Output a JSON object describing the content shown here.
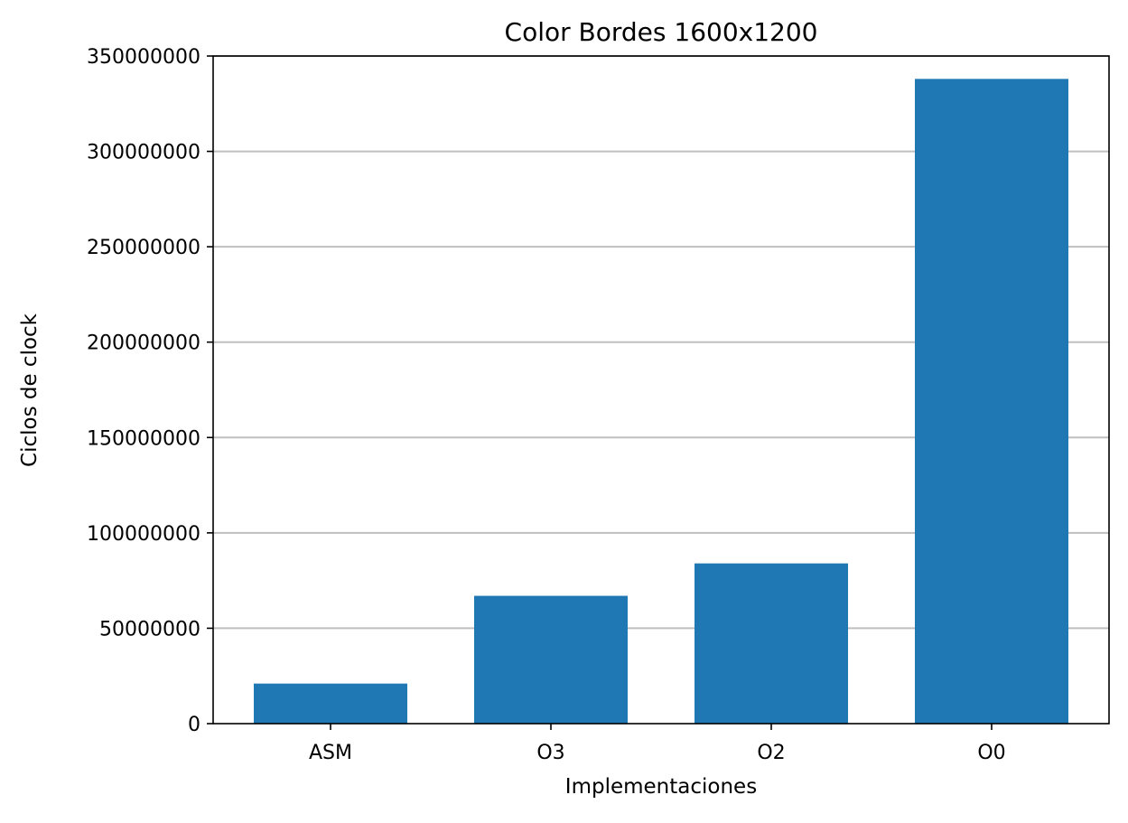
{
  "chart_data": {
    "type": "bar",
    "title": "Color Bordes 1600x1200",
    "xlabel": "Implementaciones",
    "ylabel": "Ciclos de clock",
    "categories": [
      "ASM",
      "O3",
      "O2",
      "O0"
    ],
    "values": [
      21000000,
      67000000,
      84000000,
      338000000
    ],
    "ylim": [
      0,
      350000000
    ],
    "yticks": [
      0,
      50000000,
      100000000,
      150000000,
      200000000,
      250000000,
      300000000,
      350000000
    ],
    "ytick_labels": [
      "0",
      "50000000",
      "100000000",
      "150000000",
      "200000000",
      "250000000",
      "300000000",
      "350000000"
    ],
    "grid": "horizontal",
    "bar_color": "#1f77b4",
    "grid_color": "#bfbfbf"
  }
}
